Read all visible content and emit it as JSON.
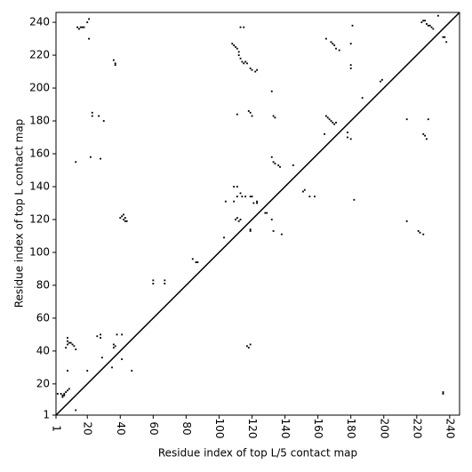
{
  "chart_data": {
    "type": "scatter",
    "x_label": "Residue index of top L/5 contact map",
    "y_label": "Residue index of top L contact map",
    "color": "#000000",
    "xlim": [
      1,
      246
    ],
    "ylim": [
      1,
      246
    ],
    "xticks": [
      1,
      20,
      40,
      60,
      80,
      100,
      120,
      140,
      160,
      180,
      200,
      220,
      240
    ],
    "yticks": [
      1,
      20,
      40,
      60,
      80,
      100,
      120,
      140,
      160,
      180,
      200,
      220,
      240
    ],
    "x": [
      2,
      4,
      5,
      5,
      6,
      6,
      7,
      8,
      9,
      7,
      8,
      8,
      9,
      10,
      11,
      12,
      13,
      8,
      8,
      13,
      14,
      15,
      16,
      17,
      18,
      20,
      21,
      21,
      22,
      23,
      23,
      27,
      30,
      28,
      26,
      28,
      28,
      36,
      37,
      37,
      40,
      41,
      42,
      42,
      43,
      43,
      44,
      60,
      60,
      67,
      67,
      84,
      86,
      87,
      103,
      104,
      109,
      109,
      111,
      111,
      113,
      114,
      116,
      119,
      120,
      121,
      123,
      123,
      111,
      110,
      111,
      112,
      113,
      119,
      119,
      108,
      109,
      110,
      111,
      112,
      112,
      113,
      114,
      115,
      116,
      117,
      119,
      120,
      122,
      123,
      113,
      115,
      118,
      119,
      120,
      128,
      129,
      132,
      133,
      134,
      136,
      137,
      132,
      133,
      138,
      132,
      133,
      134,
      145,
      151,
      152,
      155,
      158,
      164,
      165,
      166,
      167,
      168,
      169,
      170,
      171,
      165,
      168,
      169,
      170,
      171,
      173,
      178,
      178,
      180,
      180,
      180,
      180,
      181,
      187,
      198,
      199,
      223,
      224,
      225,
      226,
      227,
      228,
      229,
      230,
      233,
      236,
      237,
      238,
      13,
      182,
      214,
      214,
      221,
      222,
      224,
      224,
      225,
      226,
      227,
      236,
      236,
      20,
      29,
      35,
      38,
      37,
      36,
      36,
      41,
      41,
      47,
      117,
      118,
      119
    ],
    "values": [
      14,
      14,
      12,
      13,
      13,
      14,
      15,
      16,
      17,
      42,
      44,
      46,
      45,
      45,
      44,
      43,
      41,
      48,
      28,
      155,
      237,
      236,
      237,
      237,
      237,
      240,
      242,
      230,
      158,
      183,
      185,
      183,
      180,
      157,
      49,
      48,
      50,
      217,
      214,
      215,
      121,
      122,
      120,
      123,
      119,
      121,
      119,
      81,
      83,
      81,
      83,
      96,
      94,
      94,
      109,
      131,
      131,
      140,
      140,
      134,
      136,
      134,
      134,
      134,
      134,
      130,
      130,
      131,
      184,
      120,
      121,
      119,
      120,
      113,
      114,
      227,
      226,
      225,
      224,
      222,
      220,
      218,
      216,
      215,
      216,
      215,
      212,
      211,
      210,
      211,
      237,
      237,
      186,
      185,
      183,
      124,
      124,
      158,
      155,
      154,
      153,
      152,
      120,
      113,
      111,
      198,
      183,
      182,
      153,
      137,
      138,
      134,
      134,
      172,
      183,
      182,
      181,
      180,
      179,
      178,
      179,
      230,
      228,
      227,
      226,
      224,
      223,
      173,
      170,
      169,
      227,
      212,
      214,
      238,
      194,
      204,
      205,
      240,
      241,
      241,
      239,
      238,
      238,
      237,
      236,
      244,
      231,
      231,
      228,
      4,
      132,
      119,
      181,
      113,
      112,
      111,
      172,
      171,
      169,
      181,
      14,
      15,
      28,
      36,
      30,
      50,
      43,
      44,
      42,
      35,
      50,
      28,
      43,
      42,
      44
    ]
  }
}
